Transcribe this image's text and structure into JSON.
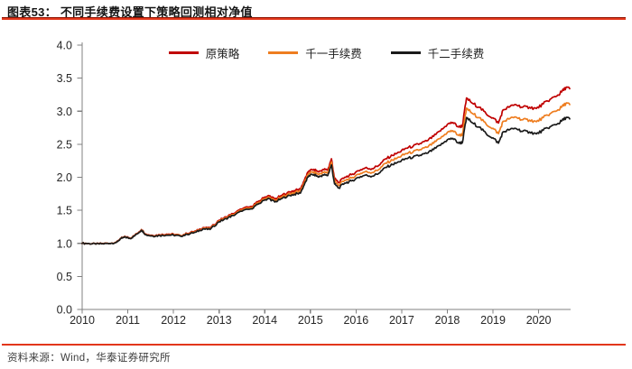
{
  "page": {
    "title": "图表53： 不同手续费设置下策略回测相对净值",
    "source": "资料来源：Wind，华泰证券研究所",
    "rules_color": "#e2361b",
    "axis_color": "#808080",
    "tick_label_color": "#262626"
  },
  "chart_data": {
    "type": "line",
    "title": "不同手续费设置下策略回测相对净值",
    "xlabel": "",
    "ylabel": "",
    "xlim": [
      2010,
      2020.7
    ],
    "ylim": [
      0.0,
      4.0
    ],
    "grid": false,
    "legend_position": "top-center",
    "y_ticks": [
      "0.0",
      "0.5",
      "1.0",
      "1.5",
      "2.0",
      "2.5",
      "3.0",
      "3.5",
      "4.0"
    ],
    "x_ticks": [
      2010,
      2011,
      2012,
      2013,
      2014,
      2015,
      2016,
      2017,
      2018,
      2019,
      2020
    ],
    "x": [
      2010.0,
      2010.15,
      2010.3,
      2010.45,
      2010.6,
      2010.75,
      2010.85,
      2010.95,
      2011.05,
      2011.15,
      2011.3,
      2011.4,
      2011.55,
      2011.7,
      2011.85,
      2012.0,
      2012.15,
      2012.3,
      2012.5,
      2012.65,
      2012.8,
      2013.0,
      2013.15,
      2013.3,
      2013.5,
      2013.7,
      2013.85,
      2014.0,
      2014.1,
      2014.22,
      2014.35,
      2014.5,
      2014.65,
      2014.78,
      2014.88,
      2014.97,
      2015.08,
      2015.18,
      2015.28,
      2015.38,
      2015.46,
      2015.53,
      2015.62,
      2015.75,
      2015.9,
      2016.05,
      2016.2,
      2016.35,
      2016.5,
      2016.65,
      2016.8,
      2016.95,
      2017.1,
      2017.25,
      2017.4,
      2017.55,
      2017.7,
      2017.85,
      2018.0,
      2018.12,
      2018.25,
      2018.33,
      2018.42,
      2018.55,
      2018.7,
      2018.85,
      2019.0,
      2019.12,
      2019.22,
      2019.35,
      2019.5,
      2019.65,
      2019.8,
      2019.95,
      2020.1,
      2020.25,
      2020.4,
      2020.5,
      2020.6,
      2020.68
    ],
    "series": [
      {
        "name": "原策略",
        "color": "#c00000",
        "values": [
          1.0,
          1.0,
          0.99,
          1.0,
          1.0,
          1.02,
          1.08,
          1.1,
          1.08,
          1.12,
          1.21,
          1.14,
          1.12,
          1.13,
          1.14,
          1.14,
          1.12,
          1.15,
          1.19,
          1.24,
          1.23,
          1.35,
          1.4,
          1.45,
          1.52,
          1.56,
          1.63,
          1.7,
          1.72,
          1.67,
          1.72,
          1.77,
          1.8,
          1.82,
          1.98,
          2.1,
          2.12,
          2.08,
          2.12,
          2.11,
          2.28,
          1.98,
          1.92,
          2.0,
          2.04,
          2.1,
          2.14,
          2.13,
          2.18,
          2.28,
          2.33,
          2.38,
          2.44,
          2.47,
          2.51,
          2.55,
          2.62,
          2.7,
          2.8,
          2.83,
          2.76,
          2.78,
          3.2,
          3.12,
          3.06,
          2.96,
          2.9,
          2.82,
          3.02,
          3.06,
          3.1,
          3.06,
          3.06,
          3.04,
          3.11,
          3.18,
          3.23,
          3.29,
          3.36,
          3.34
        ]
      },
      {
        "name": "千一手续费",
        "color": "#ee7d20",
        "values": [
          1.0,
          1.0,
          0.989,
          0.997,
          1.0,
          1.018,
          1.077,
          1.097,
          1.077,
          1.116,
          1.205,
          1.135,
          1.115,
          1.124,
          1.132,
          1.133,
          1.118,
          1.142,
          1.181,
          1.23,
          1.22,
          1.338,
          1.387,
          1.435,
          1.503,
          1.542,
          1.61,
          1.678,
          1.697,
          1.646,
          1.695,
          1.743,
          1.771,
          1.789,
          1.946,
          2.063,
          2.081,
          2.04,
          2.078,
          2.066,
          2.232,
          1.937,
          1.877,
          1.954,
          1.99,
          2.047,
          2.084,
          2.072,
          2.118,
          2.213,
          2.259,
          2.305,
          2.359,
          2.384,
          2.419,
          2.453,
          2.516,
          2.588,
          2.68,
          2.704,
          2.633,
          2.649,
          3.046,
          2.965,
          2.903,
          2.803,
          2.741,
          2.661,
          2.847,
          2.88,
          2.912,
          2.87,
          2.865,
          2.841,
          2.902,
          2.963,
          3.006,
          3.059,
          3.121,
          3.1
        ]
      },
      {
        "name": "千二手续费",
        "color": "#1a1a1a",
        "values": [
          1.0,
          0.999,
          0.988,
          0.995,
          0.998,
          1.015,
          1.074,
          1.094,
          1.073,
          1.112,
          1.2,
          1.13,
          1.11,
          1.118,
          1.125,
          1.126,
          1.11,
          1.134,
          1.172,
          1.22,
          1.209,
          1.326,
          1.373,
          1.421,
          1.487,
          1.524,
          1.591,
          1.658,
          1.675,
          1.625,
          1.671,
          1.717,
          1.743,
          1.76,
          1.913,
          2.027,
          2.044,
          2.002,
          2.038,
          2.026,
          2.187,
          1.897,
          1.837,
          1.911,
          1.945,
          1.998,
          2.031,
          2.017,
          2.06,
          2.15,
          2.192,
          2.234,
          2.284,
          2.304,
          2.333,
          2.362,
          2.419,
          2.484,
          2.568,
          2.588,
          2.516,
          2.529,
          2.905,
          2.823,
          2.759,
          2.659,
          2.596,
          2.516,
          2.688,
          2.715,
          2.74,
          2.695,
          2.685,
          2.657,
          2.711,
          2.765,
          2.801,
          2.849,
          2.904,
          2.883
        ]
      }
    ]
  }
}
